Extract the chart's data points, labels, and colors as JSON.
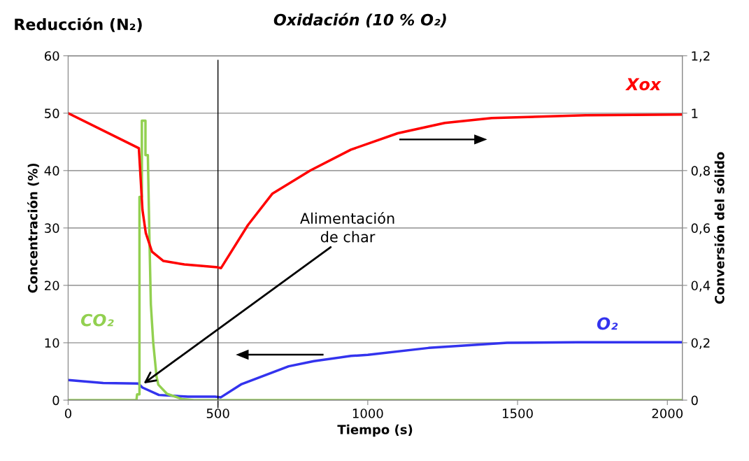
{
  "chart_data": {
    "type": "line",
    "title": "Reducción (N₂)",
    "subtitle": "Oxidación (10 % O₂)",
    "xlabel": "Tiempo (s)",
    "ylabel": "Concentración (%)",
    "y2label": "Conversión del sólido",
    "xlim": [
      0,
      2050
    ],
    "xticks": [
      0,
      500,
      1000,
      1500,
      2000
    ],
    "ylim": [
      0,
      60
    ],
    "yticks": [
      0,
      10,
      20,
      30,
      40,
      50,
      60
    ],
    "y2lim": [
      0,
      1.2
    ],
    "y2ticks": [
      {
        "value": 0,
        "label": "0"
      },
      {
        "value": 0.2,
        "label": "0,2"
      },
      {
        "value": 0.4,
        "label": "0,4"
      },
      {
        "value": 0.6,
        "label": "0,6"
      },
      {
        "value": 0.8,
        "label": "0,8"
      },
      {
        "value": 1,
        "label": "1"
      },
      {
        "value": 1.2,
        "label": "1,2"
      }
    ],
    "grid": "y",
    "marker": "none",
    "line_style": "solid",
    "series": [
      {
        "name": "Xox",
        "color": "#ff0000",
        "axis": "y2",
        "x": [
          0,
          170,
          236,
          248,
          259,
          280,
          318,
          388,
          498,
          510,
          600,
          682,
          808,
          944,
          1100,
          1257,
          1414,
          1727,
          2050
        ],
        "values": [
          1.0,
          0.912,
          0.878,
          0.663,
          0.583,
          0.517,
          0.485,
          0.473,
          0.463,
          0.46,
          0.61,
          0.72,
          0.8,
          0.873,
          0.93,
          0.966,
          0.983,
          0.993,
          0.995
        ]
      },
      {
        "name": "O₂",
        "color": "#3333ee",
        "x": [
          0,
          117,
          234,
          248,
          303,
          400,
          490,
          510,
          579,
          736,
          820,
          944,
          1000,
          1203,
          1465,
          1700,
          2050
        ],
        "values": [
          3.5,
          3.0,
          2.9,
          2.2,
          0.9,
          0.6,
          0.6,
          0.5,
          2.8,
          5.9,
          6.8,
          7.7,
          7.9,
          9.1,
          10.0,
          10.1,
          10.1
        ]
      },
      {
        "name": "CO₂",
        "color": "#92d050",
        "x": [
          0,
          228,
          230,
          238,
          238,
          246,
          246,
          258,
          258,
          266,
          271,
          276,
          284,
          295,
          301,
          330,
          380,
          420,
          2050
        ],
        "values": [
          0,
          0,
          1,
          1,
          35.4,
          35.4,
          48.7,
          48.7,
          42.7,
          42.7,
          28.9,
          16.7,
          10,
          4.1,
          2.7,
          1.1,
          0.2,
          0,
          0
        ]
      }
    ],
    "ref_lines": [
      {
        "axis": "x",
        "value": 500,
        "color": "#000000",
        "line_style": "solid"
      }
    ],
    "annotations": [
      {
        "text": "Alimentación\nde char",
        "x": 252,
        "y": 2.9
      }
    ]
  }
}
